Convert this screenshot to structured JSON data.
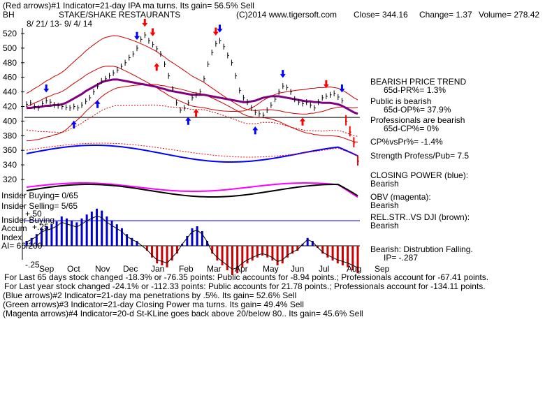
{
  "header": {
    "line1": "(Red arrows)#1 Indicator=21-day IPA ma turns. Its gain= 56.5% Sell",
    "ticker": "BH",
    "company": "STAKE/SHAKE RESTAURANTS",
    "copyright": "(C)2014 www.tigersoft.com",
    "close": "Close=  344.16",
    "change": "Change= 1.37",
    "volume": "Volume= 278.42",
    "date_range": "8/ 21/ 13-  9/ 4/ 14"
  },
  "right_panel": {
    "bearish_trend": "BEARISH PRICE TREND",
    "pr_65d": "65d-PR%= 1.3%",
    "public_bearish": "Public is bearish",
    "op_65d": "65d-OP%= 37.9%",
    "pros_bearish": "Professionals are bearish",
    "cp_65d": "65d-CP%= 0%",
    "cp_vs_pr": "CP%vsPr%= -1.4%",
    "strength": "Strength Profess/Pub= 7.5",
    "closing_power_label": "CLOSING POWER (blue):",
    "closing_power_value": "Bearish",
    "obv_label": "OBV (magenta):",
    "obv_value": "Bearish",
    "relstr_label": "REL.STR..VS DJI (brown):",
    "relstr_value": "Bearish",
    "distribution": "Bearish: Distrubtion Falling.",
    "ip": "IP= -.287"
  },
  "left_labels": {
    "insider_buying_count": "Insider Buying= 0/65",
    "insider_selling_count": "Insider Selling= 5/65",
    "insider_buying": "Insider Buying",
    "accum": "Accum",
    "index": "Index",
    "ai": "AI= 66/200",
    "plus50": "+.50",
    "plus25": "+.25",
    "minus25": "-.25"
  },
  "footer": {
    "line1": "For Last 65 days stock changed -18.3% or -76.35 points:  Public accounts for -8.94 points.;  Professionals account for -67.41 points.",
    "line2": "For Last year stock changed -24.1% or -112.33 points:  Public accounts for  21.78 points.;  Professionals account for -134.11 points.",
    "line3": "(Blue arrows)#2 Indicator=21-day ma penetrations by .5%. Its gain= 52.6% Sell",
    "line4": "(Green arrows)#3 Indicator=21-day Closing Power ma turns. Its gain= 49.4% Sell",
    "line5": "(Magenta arrows)#4 Indicator=20-d St-KLine goes back above 20/below 80.. Its gain= 45.6% Sell"
  },
  "chart_data": {
    "type": "line",
    "y_ticks": [
      "520",
      "500",
      "480",
      "460",
      "440",
      "420",
      "400",
      "380",
      "360",
      "340",
      "320"
    ],
    "y_tick_values": [
      520,
      500,
      480,
      460,
      440,
      420,
      400,
      380,
      360,
      340,
      320
    ],
    "ylim": [
      315,
      530
    ],
    "months": [
      "Sep",
      "Oct",
      "Nov",
      "Dec",
      "Jan",
      "Feb",
      "Mar",
      "Apr",
      "May",
      "Jun",
      "Jul",
      "Aug",
      "Sep"
    ],
    "reference_line": 405,
    "price": [
      423,
      425,
      420,
      418,
      424,
      428,
      426,
      422,
      421,
      420,
      419,
      418,
      420,
      418,
      422,
      427,
      432,
      440,
      448,
      455,
      458,
      462,
      466,
      470,
      475,
      480,
      487,
      492,
      500,
      512,
      518,
      510,
      505,
      499,
      492,
      478,
      462,
      444,
      425,
      415,
      418,
      425,
      432,
      436,
      440,
      458,
      478,
      494,
      506,
      510,
      502,
      490,
      480,
      462,
      442,
      432,
      426,
      418,
      412,
      410,
      408,
      415,
      422,
      430,
      440,
      448,
      446,
      440,
      430,
      426,
      424,
      426,
      422,
      418,
      426,
      432,
      434,
      436,
      438,
      433,
      428,
      400,
      385,
      370,
      345
    ],
    "ma21": [
      418,
      418,
      419,
      419,
      420,
      421,
      421,
      422,
      422,
      423,
      425,
      428,
      431,
      434,
      437,
      441,
      444,
      447,
      450,
      453,
      455,
      456,
      457,
      457,
      456,
      455,
      454,
      453,
      452,
      451,
      450,
      449,
      448,
      447,
      445,
      444,
      442,
      441,
      440,
      439,
      438,
      437,
      436,
      436,
      436,
      436,
      435,
      434,
      433,
      432,
      431,
      430,
      429,
      428,
      427,
      426,
      426,
      427,
      428,
      430,
      432,
      433,
      434,
      434,
      434,
      433,
      432,
      431,
      430,
      429,
      428,
      427,
      427,
      426,
      426,
      425,
      425,
      425,
      424,
      423,
      421,
      418,
      415,
      412,
      410
    ],
    "series": [
      {
        "name": "CLOSING POWER (blue)",
        "color": "#0000ff"
      },
      {
        "name": "OBV (magenta)",
        "color": "#ff00ff"
      },
      {
        "name": "REL.STR..VS DJI (brown)",
        "color": "#000000"
      }
    ],
    "accum_index": [
      0.05,
      0.08,
      0.12,
      0.18,
      0.2,
      0.22,
      0.25,
      0.3,
      0.28,
      0.26,
      0.24,
      0.28,
      0.32,
      0.35,
      0.38,
      0.36,
      0.3,
      0.26,
      0.22,
      0.18,
      0.12,
      0.08,
      0.05,
      0.0,
      -0.05,
      -0.12,
      -0.18,
      -0.2,
      -0.22,
      -0.15,
      -0.08,
      0.02,
      0.1,
      0.18,
      0.2,
      0.15,
      0.05,
      -0.08,
      -0.15,
      -0.2,
      -0.25,
      -0.3,
      -0.28,
      -0.22,
      -0.18,
      -0.15,
      -0.12,
      -0.1,
      -0.12,
      -0.15,
      -0.2,
      -0.18,
      -0.12,
      -0.08,
      -0.05,
      0.02,
      0.08,
      0.05,
      -0.02,
      -0.08,
      -0.12,
      -0.15,
      -0.18,
      -0.2,
      -0.22,
      -0.25,
      -0.28
    ]
  }
}
